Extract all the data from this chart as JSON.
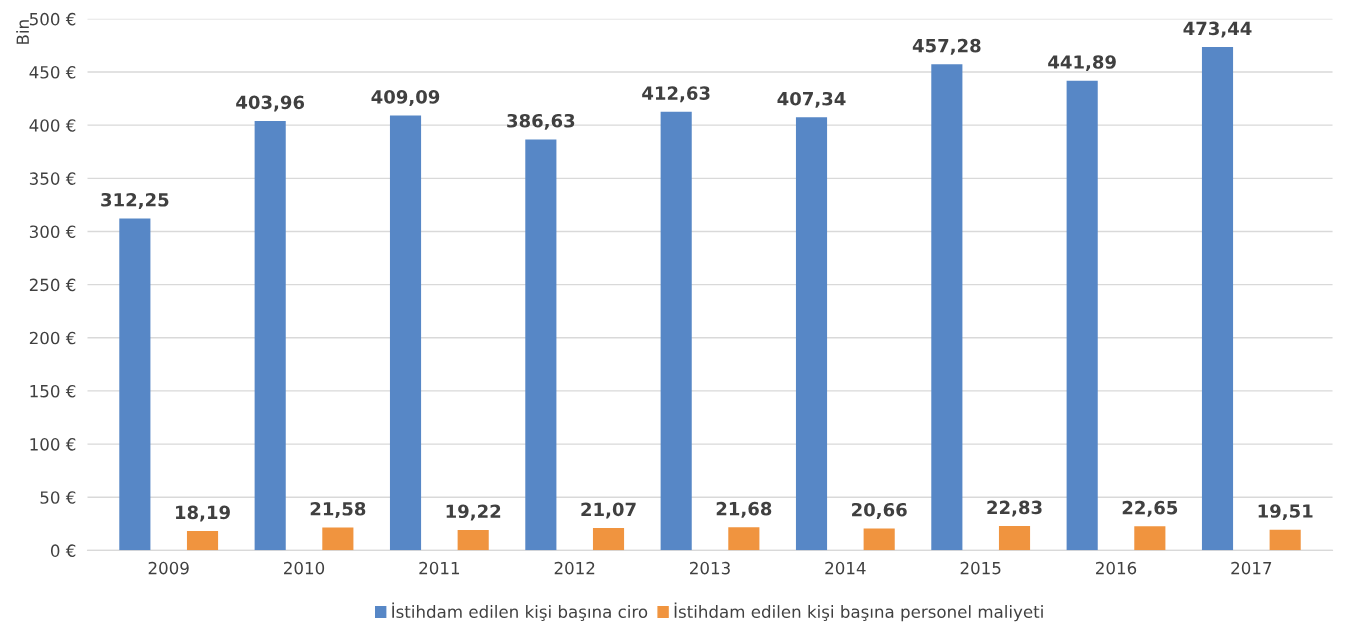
{
  "chart_data": {
    "type": "bar",
    "ylabel": "Bin",
    "categories": [
      "2009",
      "2010",
      "2011",
      "2012",
      "2013",
      "2014",
      "2015",
      "2016",
      "2017"
    ],
    "series": [
      {
        "name": "İstihdam edilen kişi başına ciro",
        "color": "#5787c6",
        "values": [
          312.25,
          403.96,
          409.09,
          386.63,
          412.63,
          407.34,
          457.28,
          441.89,
          473.44
        ],
        "value_labels": [
          "312,25",
          "403,96",
          "409,09",
          "386,63",
          "412,63",
          "407,34",
          "457,28",
          "441,89",
          "473,44"
        ]
      },
      {
        "name": "İstihdam edilen kişi başına personel maliyeti",
        "color": "#f0943f",
        "values": [
          18.19,
          21.58,
          19.22,
          21.07,
          21.68,
          20.66,
          22.83,
          22.65,
          19.51
        ],
        "value_labels": [
          "18,19",
          "21,58",
          "19,22",
          "21,07",
          "21,68",
          "20,66",
          "22,83",
          "22,65",
          "19,51"
        ]
      }
    ],
    "ylim": [
      0,
      500
    ],
    "yticks": [
      {
        "value": 0,
        "label": "0 €"
      },
      {
        "value": 50,
        "label": "50 €"
      },
      {
        "value": 100,
        "label": "100 €"
      },
      {
        "value": 150,
        "label": "150 €"
      },
      {
        "value": 200,
        "label": "200 €"
      },
      {
        "value": 250,
        "label": "250 €"
      },
      {
        "value": 300,
        "label": "300 €"
      },
      {
        "value": 350,
        "label": "350 €"
      },
      {
        "value": 400,
        "label": "400 €"
      },
      {
        "value": 450,
        "label": "450 €"
      },
      {
        "value": 500,
        "label": "500 €"
      }
    ],
    "grid": "y",
    "legend": "bottom"
  }
}
